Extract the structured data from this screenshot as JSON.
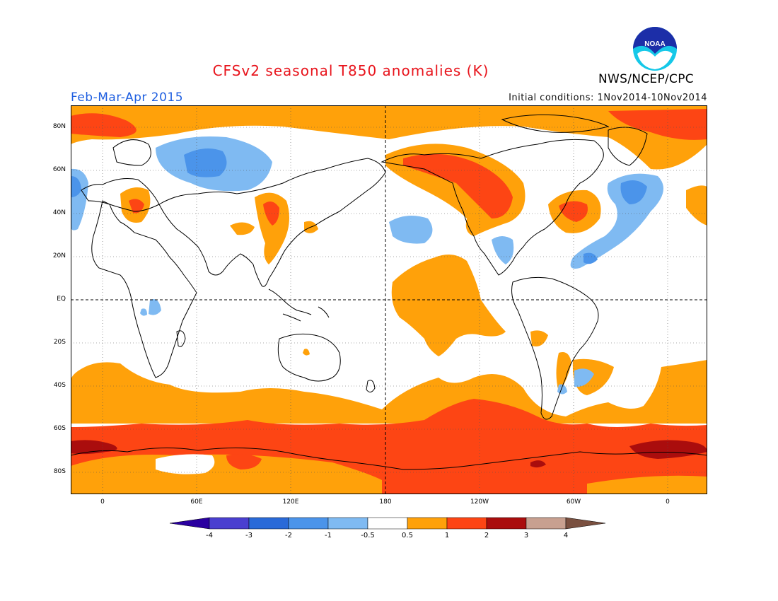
{
  "title": "CFSv2 seasonal T850 anomalies (K)",
  "season": "Feb-Mar-Apr 2015",
  "initial_conditions": "Initial conditions: 1Nov2014-10Nov2014",
  "agency": "NWS/NCEP/CPC",
  "logo_text": "NOAA",
  "lat_labels": [
    "80N",
    "60N",
    "40N",
    "20N",
    "EQ",
    "20S",
    "40S",
    "60S",
    "80S"
  ],
  "lon_labels": [
    "0",
    "60E",
    "120E",
    "180",
    "120W",
    "60W",
    "0"
  ],
  "colorbar": {
    "tick_labels": [
      "-4",
      "-3",
      "-2",
      "-1",
      "-0.5",
      "0.5",
      "1",
      "2",
      "3",
      "4"
    ],
    "colors": [
      "#2a00a0",
      "#4a3fd0",
      "#2a6ad8",
      "#4b94ea",
      "#7fbaf2",
      "#ffffff",
      "#ffa10a",
      "#fd4514",
      "#aa0d0d",
      "#c8a090",
      "#7a5040"
    ]
  },
  "map_colors": {
    "ocean_base": "#ffffff",
    "warm_light": "#ffa10a",
    "warm_medium": "#fd4514",
    "warm_strong": "#aa0d0d",
    "cool_light": "#7fbaf2",
    "cool_medium": "#4b94ea"
  }
}
